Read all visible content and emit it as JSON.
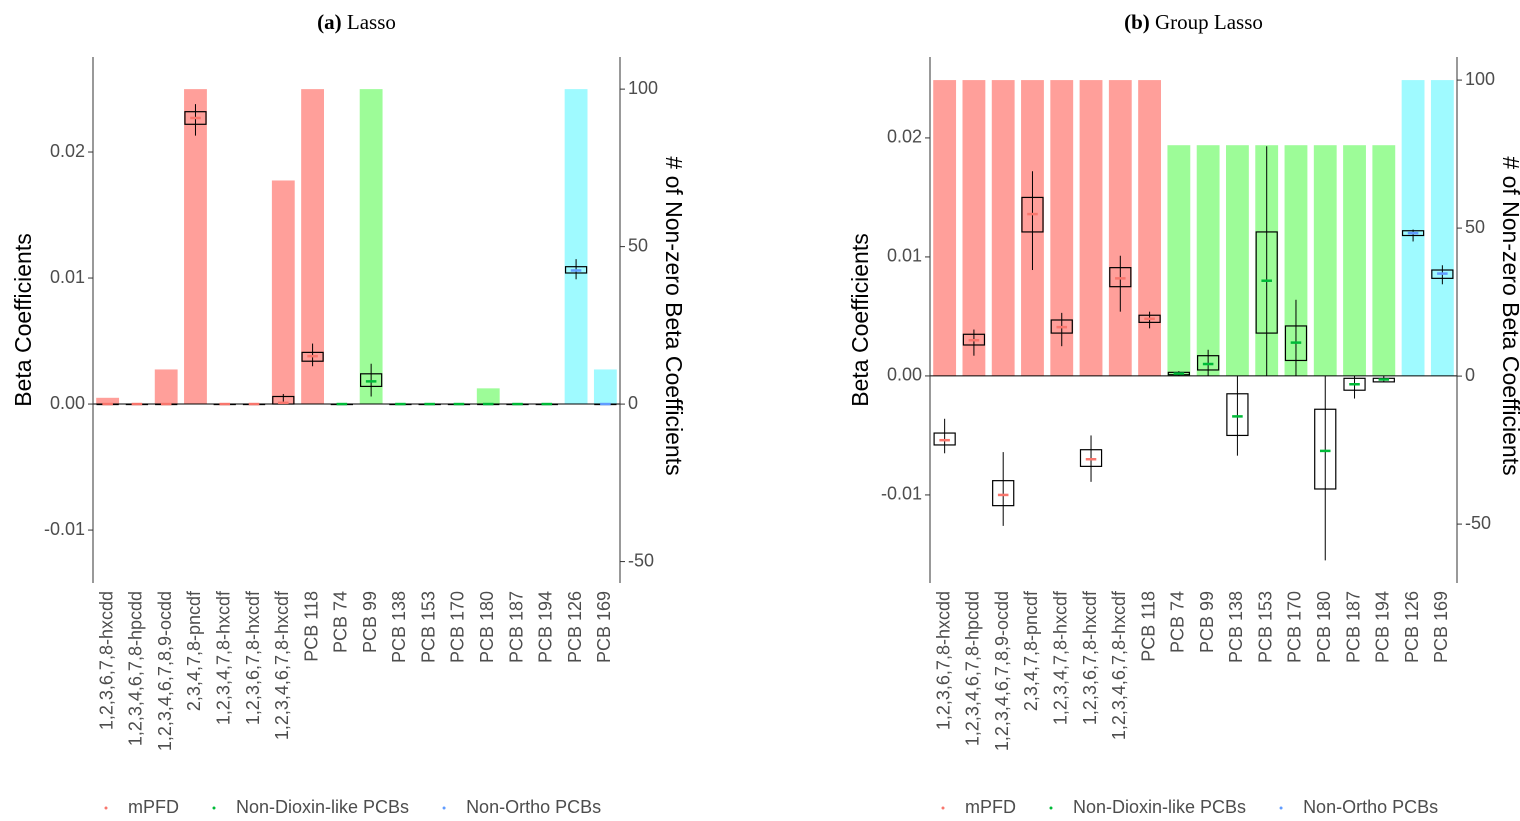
{
  "chart_data": [
    {
      "type": "box",
      "panel_label": "(a)",
      "title": "Lasso",
      "y_label": "Beta Coefficients",
      "y2_label": "# of Non-zero Beta Coefficients",
      "ylim": [
        -0.0142,
        0.02754
      ],
      "yticks": [
        -0.01,
        {
          "value": 0,
          "label": "0.00"
        },
        0.01,
        0.02
      ],
      "y2lim": [
        -56.8,
        110.2
      ],
      "y2ticks": [
        -50,
        0,
        50,
        100
      ],
      "series": [
        {
          "name": "mPFD",
          "color": "#f8766d",
          "bar_color": "#ff9f9a",
          "categories": [
            "1,2,3,6,7,8-hxcdd",
            "1,2,3,4,6,7,8-hpcdd",
            "1,2,3,4,6,7,8,9-ocdd",
            "2,3,4,7,8-pncdf",
            "1,2,3,4,7,8-hxcdf",
            "1,2,3,6,7,8-hxcdf",
            "1,2,3,4,6,7,8-hxcdf",
            "PCB 118"
          ],
          "counts": [
            2,
            0,
            11,
            100,
            0,
            0,
            71,
            100
          ],
          "boxes": [
            [
              0,
              0,
              0,
              0,
              0
            ],
            [
              0,
              0,
              0,
              0,
              0
            ],
            [
              0,
              0,
              0,
              0,
              0
            ],
            [
              0.0213,
              0.0222,
              0.0227,
              0.0232,
              0.0238
            ],
            [
              0,
              0,
              0,
              0,
              0
            ],
            [
              0,
              0,
              0,
              0,
              0
            ],
            [
              0,
              0,
              0.0001,
              0.0006,
              0.0008
            ],
            [
              0.003,
              0.0034,
              0.0038,
              0.0041,
              0.0048
            ]
          ]
        },
        {
          "name": "Non-Dioxin-like PCBs",
          "color": "#00ba38",
          "bar_color": "#9dfc98",
          "categories": [
            "PCB 74",
            "PCB 99",
            "PCB 138",
            "PCB 153",
            "PCB 170",
            "PCB 180",
            "PCB 187",
            "PCB 194"
          ],
          "counts": [
            0,
            100,
            0,
            0,
            0,
            5,
            0,
            0
          ],
          "boxes": [
            [
              0,
              0,
              0,
              0,
              0
            ],
            [
              0.0006,
              0.0014,
              0.0018,
              0.0024,
              0.0032
            ],
            [
              0,
              0,
              0,
              0,
              0
            ],
            [
              0,
              0,
              0,
              0,
              0
            ],
            [
              0,
              0,
              0,
              0,
              0
            ],
            [
              0,
              0,
              0,
              0,
              0
            ],
            [
              0,
              0,
              0,
              0,
              0
            ],
            [
              0,
              0,
              0,
              0,
              0
            ]
          ]
        },
        {
          "name": "Non-Ortho PCBs",
          "color": "#619cff",
          "bar_color": "#9ffaff",
          "categories": [
            "PCB 126",
            "PCB 169"
          ],
          "counts": [
            100,
            11
          ],
          "boxes": [
            [
              0.0099,
              0.0104,
              0.0106,
              0.0109,
              0.0115
            ],
            [
              0,
              0,
              0,
              0,
              0
            ]
          ]
        }
      ]
    },
    {
      "type": "box",
      "panel_label": "(b)",
      "title": "Group Lasso",
      "y_label": "Beta Coefficients",
      "y2_label": "# of Non-zero Beta Coefficients",
      "ylim": [
        -0.0174,
        0.0268
      ],
      "yticks": [
        -0.01,
        {
          "value": 0,
          "label": "0.00"
        },
        0.01,
        0.02
      ],
      "y2lim": [
        -69.9,
        107.8
      ],
      "y2ticks": [
        -50,
        0,
        50,
        100
      ],
      "series": [
        {
          "name": "mPFD",
          "color": "#f8766d",
          "bar_color": "#ff9f9a",
          "categories": [
            "1,2,3,6,7,8-hxcdd",
            "1,2,3,4,6,7,8-hpcdd",
            "1,2,3,4,6,7,8,9-ocdd",
            "2,3,4,7,8-pncdf",
            "1,2,3,4,7,8-hxcdf",
            "1,2,3,6,7,8-hxcdf",
            "1,2,3,4,6,7,8-hxcdf",
            "PCB 118"
          ],
          "counts": [
            100,
            100,
            100,
            100,
            100,
            100,
            100,
            100
          ],
          "boxes": [
            [
              -0.0065,
              -0.0058,
              -0.0054,
              -0.0048,
              -0.0036
            ],
            [
              0.0017,
              0.0026,
              0.003,
              0.0035,
              0.0039
            ],
            [
              -0.0126,
              -0.0109,
              -0.01,
              -0.0088,
              -0.0064
            ],
            [
              0.0089,
              0.0121,
              0.0136,
              0.015,
              0.0172
            ],
            [
              0.0025,
              0.0036,
              0.0041,
              0.0047,
              0.0053
            ],
            [
              -0.0089,
              -0.0076,
              -0.007,
              -0.0062,
              -0.005
            ],
            [
              0.0054,
              0.0075,
              0.0082,
              0.0091,
              0.0101
            ],
            [
              0.004,
              0.0045,
              0.0048,
              0.0051,
              0.0054
            ]
          ]
        },
        {
          "name": "Non-Dioxin-like PCBs",
          "color": "#00ba38",
          "bar_color": "#9dfc98",
          "categories": [
            "PCB 74",
            "PCB 99",
            "PCB 138",
            "PCB 153",
            "PCB 170",
            "PCB 180",
            "PCB 187",
            "PCB 194"
          ],
          "counts": [
            78,
            78,
            78,
            78,
            78,
            78,
            78,
            78
          ],
          "boxes": [
            [
              0,
              0.0001,
              0.0002,
              0.0003,
              0.0004
            ],
            [
              0,
              0.0005,
              0.001,
              0.0017,
              0.0022
            ],
            [
              -0.0067,
              -0.005,
              -0.0034,
              -0.0015,
              0
            ],
            [
              0,
              0.0036,
              0.008,
              0.0121,
              0.0193
            ],
            [
              0,
              0.0013,
              0.0028,
              0.0042,
              0.0064
            ],
            [
              -0.0155,
              -0.0095,
              -0.0063,
              -0.0028,
              0
            ],
            [
              -0.0019,
              -0.0012,
              -0.0007,
              -0.0002,
              0
            ],
            [
              -0.0005,
              -0.0005,
              -0.0003,
              -0.0002,
              0
            ]
          ]
        },
        {
          "name": "Non-Ortho PCBs",
          "color": "#619cff",
          "bar_color": "#9ffaff",
          "categories": [
            "PCB 126",
            "PCB 169"
          ],
          "counts": [
            100,
            100
          ],
          "boxes": [
            [
              0.0113,
              0.0118,
              0.012,
              0.0122,
              0.0123
            ],
            [
              0.0077,
              0.0082,
              0.0086,
              0.0089,
              0.0093
            ]
          ]
        }
      ]
    }
  ]
}
